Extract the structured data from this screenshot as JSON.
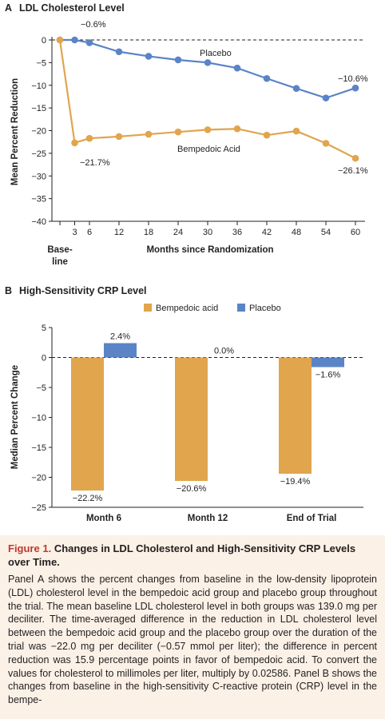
{
  "panel_a": {
    "letter": "A",
    "title": "LDL Cholesterol Level"
  },
  "panel_b": {
    "letter": "B",
    "title": "High-Sensitivity CRP Level"
  },
  "colors": {
    "bempedoic": "#e0a54d",
    "placebo": "#5b84c6",
    "caption_bg": "#fbf1e7",
    "caption_accent": "#c0392b"
  },
  "chart_data": [
    {
      "type": "line",
      "title": "LDL Cholesterol Level",
      "xlabel": "Months since Randomization",
      "ylabel": "Mean Percent Reduction",
      "baseline_label_1": "Base-",
      "baseline_label_2": "line",
      "x": [
        0,
        3,
        6,
        12,
        18,
        24,
        30,
        36,
        42,
        48,
        54,
        60
      ],
      "x_tick_values": [
        3,
        6,
        12,
        18,
        24,
        30,
        36,
        42,
        48,
        54,
        60
      ],
      "x_tick_labels": [
        "3",
        "6",
        "12",
        "18",
        "24",
        "30",
        "36",
        "42",
        "48",
        "54",
        "60"
      ],
      "xlim": [
        0,
        60
      ],
      "ylim": [
        -40,
        0
      ],
      "y_ticks": [
        0,
        -5,
        -10,
        -15,
        -20,
        -25,
        -30,
        -35,
        -40
      ],
      "y_tick_labels": [
        "0",
        "−5",
        "−10",
        "−15",
        "−20",
        "−25",
        "−30",
        "−35",
        "−40"
      ],
      "reference_line": 0,
      "series": [
        {
          "name": "Placebo",
          "color": "#5b84c6",
          "values": [
            0,
            0,
            -0.6,
            -2.6,
            -3.6,
            -4.4,
            -5.0,
            -6.2,
            -8.5,
            -10.7,
            -12.8,
            -10.6
          ]
        },
        {
          "name": "Bempedoic Acid",
          "color": "#e0a54d",
          "values": [
            0,
            -22.7,
            -21.7,
            -21.3,
            -20.8,
            -20.3,
            -19.8,
            -19.6,
            -21.0,
            -20.1,
            -22.8,
            -26.1
          ]
        }
      ],
      "annotations": [
        "−0.6%",
        "−21.7%",
        "−10.6%",
        "−26.1%"
      ]
    },
    {
      "type": "bar",
      "title": "High-Sensitivity CRP Level",
      "xlabel": "",
      "ylabel": "Median Percent Change",
      "categories": [
        "Month 6",
        "Month 12",
        "End of Trial"
      ],
      "ylim": [
        -25,
        5
      ],
      "y_ticks": [
        5,
        0,
        -5,
        -10,
        -15,
        -20,
        -25
      ],
      "y_tick_labels": [
        "5",
        "0",
        "−5",
        "−10",
        "−15",
        "−20",
        "−25"
      ],
      "legend_position": "top",
      "series": [
        {
          "name": "Bempedoic acid",
          "color": "#e0a54d",
          "values": [
            -22.2,
            -20.6,
            -19.4
          ],
          "labels": [
            "−22.2%",
            "−20.6%",
            "−19.4%"
          ]
        },
        {
          "name": "Placebo",
          "color": "#5b84c6",
          "values": [
            2.4,
            0.0,
            -1.6
          ],
          "labels": [
            "2.4%",
            "0.0%",
            "−1.6%"
          ]
        }
      ]
    }
  ],
  "caption": {
    "label": "Figure 1.",
    "title": "Changes in LDL Cholesterol and High-Sensitivity CRP Levels over Time.",
    "body": "Panel A shows the percent changes from baseline in the low-density lipoprotein (LDL) cholesterol level in the bempedoic acid group and placebo group throughout the trial. The mean baseline LDL cholesterol level in both groups was 139.0 mg per deciliter. The time-averaged difference in the reduction in LDL cholesterol level between the bempedoic acid group and the placebo group over the duration of the trial was −22.0 mg per deciliter (−0.57 mmol per liter); the difference in percent reduction was 15.9 percentage points in favor of bempedoic acid. To convert the values for cholesterol to millimoles per liter, multiply by 0.02586. Panel B shows the changes from baseline in the high-sensitivity C-reactive protein (CRP) level in the bempe-"
  }
}
